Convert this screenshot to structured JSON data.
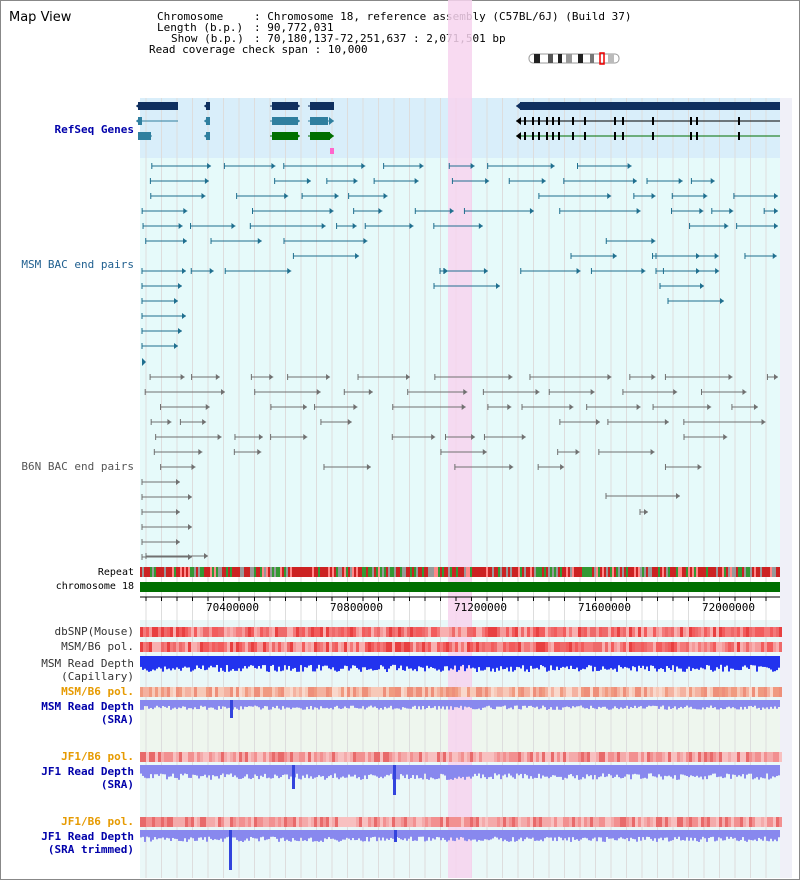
{
  "app": {
    "title": "Map View"
  },
  "info": {
    "chromosome_label": "Chromosome",
    "chromosome_value": "Chromosome 18, reference assembly (C57BL/6J) (Build 37)",
    "length_label": "Length (b.p.)",
    "length_value": "90,772,031",
    "show_label": "Show (b.p.)",
    "show_value": "70,180,137-72,251,637 : 2,071,501 bp",
    "coverage_label": "Read coverage check span",
    "coverage_value": "10,000"
  },
  "tracks": {
    "refseq": "RefSeq Genes",
    "msm_bac": "MSM BAC end pairs",
    "b6n_bac": "B6N BAC end pairs",
    "repeat": "Repeat",
    "chromosome": "chromosome 18",
    "dbsnp": "dbSNP(Mouse)",
    "msm_b6_pol_1": "MSM/B6 pol.",
    "msm_read_depth_cap_1": "MSM Read Depth",
    "msm_read_depth_cap_2": "(Capillary)",
    "msm_b6_pol_2": "MSM/B6 pol.",
    "msm_read_depth_sra_1": "MSM Read Depth",
    "msm_read_depth_sra_2": "(SRA)",
    "jf1_b6_pol_1": "JF1/B6 pol.",
    "jf1_read_depth_sra_1": "JF1 Read Depth",
    "jf1_read_depth_sra_2": "(SRA)",
    "jf1_b6_pol_2": "JF1/B6 pol.",
    "jf1_read_depth_trim_1": "JF1 Read Depth",
    "jf1_read_depth_trim_2": "(SRA trimmed)"
  },
  "axis": {
    "ticks": [
      "70400000",
      "70800000",
      "71200000",
      "71600000",
      "72000000"
    ]
  },
  "colors": {
    "refseq_bg": "#d9eefa",
    "bac_bg": "#e6fafa",
    "highlight": "#f7d4ef",
    "gene_dark": "#0f2f5f",
    "gene_teal": "#2f7f9f",
    "gene_green": "#006f00",
    "msm_feature": "#1f6f8f",
    "b6n_feature": "#707070",
    "chromosome_bar": "#006f00",
    "depth_blue": "#2233ee",
    "depth_light": "#8888ee",
    "label_blue": "#0000aa",
    "label_orange": "#e69a00"
  }
}
